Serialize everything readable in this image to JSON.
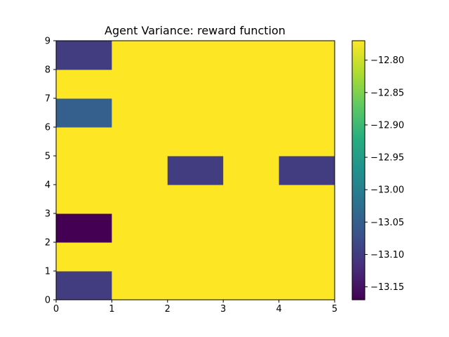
{
  "chart_data": {
    "type": "heatmap",
    "title": "Agent Variance: reward function",
    "xlabel": "",
    "ylabel": "",
    "xlim": [
      0,
      5
    ],
    "ylim": [
      0,
      9
    ],
    "x_ticks": [
      "0",
      "1",
      "2",
      "3",
      "4",
      "5"
    ],
    "y_ticks": [
      "0",
      "1",
      "2",
      "3",
      "4",
      "5",
      "6",
      "7",
      "8",
      "9"
    ],
    "rows": 9,
    "cols": 5,
    "row_order": "bottom-to-top",
    "values": [
      [
        -13.1,
        -12.77,
        -12.77,
        -12.77,
        -12.77
      ],
      [
        -12.77,
        -12.77,
        -12.77,
        -12.77,
        -12.77
      ],
      [
        -13.17,
        -12.77,
        -12.77,
        -12.77,
        -12.77
      ],
      [
        -12.77,
        -12.77,
        -12.77,
        -12.77,
        -12.77
      ],
      [
        -12.77,
        -12.77,
        -13.1,
        -12.77,
        -13.1
      ],
      [
        -12.77,
        -12.77,
        -12.77,
        -12.77,
        -12.77
      ],
      [
        -13.05,
        -12.77,
        -12.77,
        -12.77,
        -12.77
      ],
      [
        -12.77,
        -12.77,
        -12.77,
        -12.77,
        -12.77
      ],
      [
        -13.1,
        -12.77,
        -12.77,
        -12.77,
        -12.77
      ]
    ],
    "colorbar": {
      "colormap": "viridis",
      "vmin": -13.17,
      "vmax": -12.77,
      "ticks": [
        -13.15,
        -13.1,
        -13.05,
        -13.0,
        -12.95,
        -12.9,
        -12.85,
        -12.8
      ],
      "tick_labels": [
        "−13.15",
        "−13.10",
        "−13.05",
        "−13.00",
        "−12.95",
        "−12.90",
        "−12.85",
        "−12.80"
      ]
    }
  }
}
